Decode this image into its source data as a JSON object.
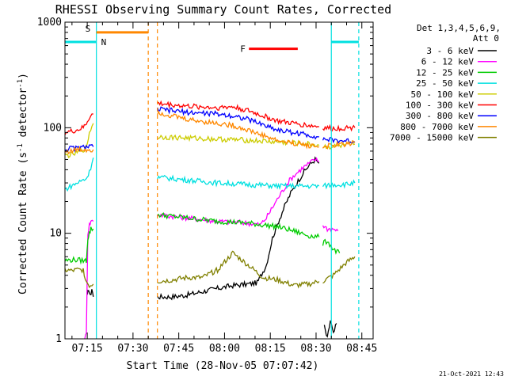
{
  "chart_data": {
    "type": "line",
    "title": "RHESSI Observing Summary Count Rates, Corrected",
    "xlabel": "Start Time (28-Nov-05 07:07:42)",
    "ylabel_main": "Corrected Count Rate (s",
    "ylabel_sup1": "-1",
    "ylabel_mid": " detector",
    "ylabel_sup2": "-1",
    "ylabel_end": ")",
    "y_scale": "log",
    "ylim": [
      1,
      1000
    ],
    "xlim_minutes": [
      0,
      101
    ],
    "x_ticks": [
      {
        "label": "07:15",
        "minute": 7.3
      },
      {
        "label": "07:30",
        "minute": 22.3
      },
      {
        "label": "07:45",
        "minute": 37.3
      },
      {
        "label": "08:00",
        "minute": 52.3
      },
      {
        "label": "08:15",
        "minute": 67.3
      },
      {
        "label": "08:30",
        "minute": 82.3
      },
      {
        "label": "08:45",
        "minute": 97.3
      }
    ],
    "y_ticks": [
      {
        "label": "1",
        "value": 1
      },
      {
        "label": "10",
        "value": 10
      },
      {
        "label": "100",
        "value": 100
      },
      {
        "label": "1000",
        "value": 1000
      }
    ],
    "legend_header": [
      "Det 1,3,4,5,6,9,",
      "Att 0"
    ],
    "legend_placement": "right",
    "footer": "21-Oct-2021 12:43",
    "flag_markers": [
      {
        "label": "S",
        "color": "#ff8800"
      },
      {
        "label": "N",
        "color": "#00e0e0"
      },
      {
        "label": "F",
        "color": "#ff0000"
      }
    ],
    "series": [
      {
        "name": "3 - 6 keV",
        "color": "#000000",
        "segments": [
          {
            "x": [
              7.3,
              7.8,
              8.3,
              8.8,
              9.3
            ],
            "y": [
              2.5,
              3.0,
              2.5,
              3.0,
              2.5
            ]
          },
          {
            "x": [
              30.3,
              35,
              40,
              45,
              50,
              55,
              60,
              63,
              66,
              68,
              70,
              72,
              74,
              76,
              78,
              80,
              82,
              83.3
            ],
            "y": [
              2.5,
              2.5,
              2.6,
              2.8,
              3.0,
              3.2,
              3.3,
              3.4,
              5,
              9,
              13,
              18,
              24,
              30,
              37,
              44,
              50,
              46
            ]
          },
          {
            "x": [
              85,
              86,
              87,
              88,
              89
            ],
            "y": [
              1.3,
              1.0,
              1.5,
              1.1,
              1.4
            ]
          }
        ]
      },
      {
        "name": "6 - 12 keV",
        "color": "#ff00ff",
        "segments": [
          {
            "x": [
              6.5,
              7,
              7.5,
              8,
              8.5,
              9.3
            ],
            "y": [
              1.0,
              1.1,
              10,
              12,
              13,
              13
            ]
          },
          {
            "x": [
              30.3,
              40,
              50,
              60,
              64,
              66,
              70,
              74,
              78,
              82,
              83.3
            ],
            "y": [
              15,
              14,
              13,
              12.5,
              12,
              14,
              22,
              33,
              42,
              50,
              48
            ]
          },
          {
            "x": [
              84.5,
              86,
              88,
              89.5
            ],
            "y": [
              12,
              11,
              11,
              10.5
            ]
          }
        ]
      },
      {
        "name": "12 - 25 keV",
        "color": "#00cc00",
        "segments": [
          {
            "x": [
              0,
              2,
              4,
              6,
              7,
              7.5,
              8,
              8.5,
              9.3
            ],
            "y": [
              5.5,
              5.6,
              5.6,
              5.5,
              5.5,
              9,
              10,
              11,
              11
            ]
          },
          {
            "x": [
              30.3,
              40,
              50,
              60,
              70,
              75,
              80,
              83.3
            ],
            "y": [
              15,
              14,
              13,
              12.5,
              11.5,
              10.5,
              9.5,
              9.2
            ]
          },
          {
            "x": [
              84.5,
              86,
              88,
              90
            ],
            "y": [
              8,
              8.5,
              7,
              6.5
            ]
          }
        ]
      },
      {
        "name": "25 - 50 keV",
        "color": "#00e0e0",
        "segments": [
          {
            "x": [
              0,
              2,
              4,
              6,
              7,
              8,
              9.3
            ],
            "y": [
              26,
              28,
              30,
              32,
              33,
              38,
              52
            ]
          },
          {
            "x": [
              30.3,
              40,
              50,
              60,
              70,
              80,
              83.3
            ],
            "y": [
              34,
              32,
              30,
              29,
              28,
              28,
              28
            ]
          },
          {
            "x": [
              84.5,
              88,
              92,
              95
            ],
            "y": [
              28,
              29,
              29,
              30
            ]
          }
        ]
      },
      {
        "name": "50 - 100 keV",
        "color": "#cccc00",
        "segments": [
          {
            "x": [
              0,
              2,
              4,
              6,
              7,
              8,
              9.3
            ],
            "y": [
              55,
              55,
              58,
              62,
              64,
              90,
              110
            ]
          },
          {
            "x": [
              30.3,
              40,
              50,
              60,
              70,
              80,
              83.3
            ],
            "y": [
              82,
              80,
              78,
              76,
              73,
              70,
              68
            ]
          },
          {
            "x": [
              84.5,
              88,
              92,
              95
            ],
            "y": [
              66,
              66,
              68,
              70
            ]
          }
        ]
      },
      {
        "name": "100 - 300 keV",
        "color": "#ff0000",
        "segments": [
          {
            "x": [
              0,
              2,
              4,
              6,
              7,
              8,
              9.3
            ],
            "y": [
              90,
              92,
              95,
              100,
              110,
              125,
              135
            ]
          },
          {
            "x": [
              30.3,
              40,
              50,
              55,
              60,
              70,
              80,
              83.3
            ],
            "y": [
              170,
              160,
              155,
              158,
              145,
              115,
              105,
              102
            ]
          },
          {
            "x": [
              84.5,
              88,
              92,
              95
            ],
            "y": [
              100,
              98,
              100,
              100
            ]
          }
        ]
      },
      {
        "name": "300 - 800 keV",
        "color": "#0000ff",
        "segments": [
          {
            "x": [
              0,
              2,
              4,
              6,
              7,
              8,
              9.3
            ],
            "y": [
              62,
              64,
              64,
              65,
              66,
              66,
              66
            ]
          },
          {
            "x": [
              30.3,
              40,
              50,
              55,
              60,
              70,
              80,
              83.3
            ],
            "y": [
              150,
              140,
              135,
              130,
              120,
              95,
              85,
              82
            ]
          },
          {
            "x": [
              84.5,
              88,
              92,
              95
            ],
            "y": [
              78,
              76,
              75,
              74
            ]
          }
        ]
      },
      {
        "name": "800 - 7000 keV",
        "color": "#ff8800",
        "segments": [
          {
            "x": [
              0,
              2,
              4,
              6,
              7,
              8,
              9.3
            ],
            "y": [
              60,
              60,
              62,
              62,
              62,
              62,
              62
            ]
          },
          {
            "x": [
              30.3,
              40,
              50,
              55,
              60,
              70,
              80,
              83.3
            ],
            "y": [
              140,
              120,
              110,
              105,
              95,
              75,
              68,
              66
            ]
          },
          {
            "x": [
              84.5,
              88,
              92,
              95
            ],
            "y": [
              66,
              68,
              70,
              72
            ]
          }
        ]
      },
      {
        "name": "7000 - 15000 keV",
        "color": "#808000",
        "segments": [
          {
            "x": [
              0,
              2,
              4,
              6,
              7,
              8,
              9.3
            ],
            "y": [
              4.5,
              4.4,
              4.5,
              4.5,
              3.5,
              3.2,
              3.3
            ]
          },
          {
            "x": [
              30.3,
              35,
              40,
              45,
              50,
              55,
              60,
              65,
              70,
              75,
              80,
              83.3
            ],
            "y": [
              3.5,
              3.6,
              3.8,
              3.8,
              4.5,
              6.5,
              5.0,
              3.8,
              3.6,
              3.2,
              3.3,
              3.5
            ]
          },
          {
            "x": [
              84.5,
              88,
              92,
              95
            ],
            "y": [
              3.5,
              4.0,
              5.2,
              6.0
            ]
          }
        ]
      }
    ],
    "flag_bars": [
      {
        "label": "S",
        "color": "#ff8800",
        "x0": 10.3,
        "x1": 27.3,
        "y": 800
      },
      {
        "label": "F",
        "color": "#ff0000",
        "x0": 60.3,
        "x1": 76.3,
        "y": 560
      }
    ],
    "attenuator_lines": [
      {
        "color": "#00e0e0",
        "x0": 0,
        "x1": 10.3,
        "y": 650
      },
      {
        "color": "#00e0e0",
        "x0": 87.3,
        "x1": 96.3,
        "y": 650
      }
    ],
    "vertical_markers": [
      {
        "color": "#00e0e0",
        "x": 10.3,
        "style": "solid"
      },
      {
        "color": "#ff8800",
        "x": 27.3,
        "style": "dashed"
      },
      {
        "color": "#ff8800",
        "x": 30.3,
        "style": "dashed"
      },
      {
        "color": "#00e0e0",
        "x": 87.3,
        "style": "solid"
      },
      {
        "color": "#00e0e0",
        "x": 96.3,
        "style": "dashed"
      }
    ]
  }
}
